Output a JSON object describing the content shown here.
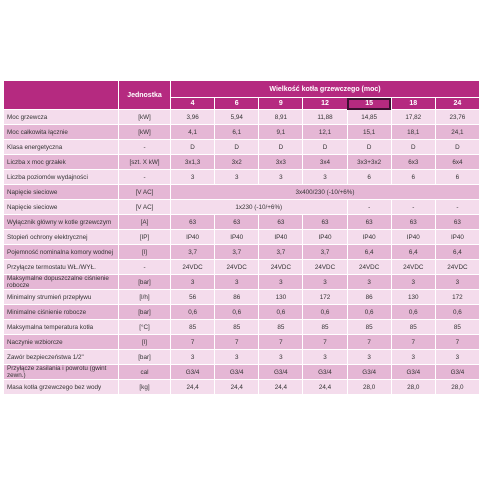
{
  "header": {
    "unit_label": "Jednostka",
    "group_title": "Wielkość kotła grzewczego (moc)",
    "columns": [
      "4",
      "6",
      "9",
      "12",
      "15",
      "18",
      "24"
    ]
  },
  "rows": [
    {
      "label": "Moc grzewcza",
      "unit": "[kW]",
      "values": [
        "3,96",
        "5,94",
        "8,91",
        "11,88",
        "14,85",
        "17,82",
        "23,76"
      ]
    },
    {
      "label": "Moc całkowita łącznie",
      "unit": "[kW]",
      "values": [
        "4,1",
        "6,1",
        "9,1",
        "12,1",
        "15,1",
        "18,1",
        "24,1"
      ]
    },
    {
      "label": "Klasa energetyczna",
      "unit": "-",
      "values": [
        "D",
        "D",
        "D",
        "D",
        "D",
        "D",
        "D"
      ]
    },
    {
      "label": "Liczba x moc grzałek",
      "unit": "[szt. X kW]",
      "values": [
        "3x1,3",
        "3x2",
        "3x3",
        "3x4",
        "3x3+3x2",
        "6x3",
        "6x4"
      ]
    },
    {
      "label": "Liczba poziomów wydajności",
      "unit": "-",
      "values": [
        "3",
        "3",
        "3",
        "3",
        "6",
        "6",
        "6"
      ]
    },
    {
      "label": "Napięcie sieciowe",
      "unit": "[V AC]",
      "values": [
        "3x400/230 (-10/+6%)"
      ]
    },
    {
      "label": "Napięcie sieciowe",
      "unit": "[V AC]",
      "values": [
        "1x230 (-10/+6%)",
        "-",
        "-",
        "-"
      ]
    },
    {
      "label": "Wyłącznik główny w kotle grzewczym",
      "unit": "[A]",
      "values": [
        "63",
        "63",
        "63",
        "63",
        "63",
        "63",
        "63"
      ]
    },
    {
      "label": "Stopień ochrony elektrycznej",
      "unit": "[IP]",
      "values": [
        "IP40",
        "IP40",
        "IP40",
        "IP40",
        "IP40",
        "IP40",
        "IP40"
      ]
    },
    {
      "label": "Pojemność nominalna komory wodnej",
      "unit": "[l]",
      "values": [
        "3,7",
        "3,7",
        "3,7",
        "3,7",
        "6,4",
        "6,4",
        "6,4"
      ]
    },
    {
      "label": "Przyłącze termostatu WŁ./WYŁ.",
      "unit": "-",
      "values": [
        "24VDC",
        "24VDC",
        "24VDC",
        "24VDC",
        "24VDC",
        "24VDC",
        "24VDC"
      ]
    },
    {
      "label": "Maksymalne dopuszczalne ciśnienie robocze",
      "unit": "[bar]",
      "values": [
        "3",
        "3",
        "3",
        "3",
        "3",
        "3",
        "3"
      ]
    },
    {
      "label": "Minimalny strumień przepływu",
      "unit": "[l/h]",
      "values": [
        "56",
        "86",
        "130",
        "172",
        "86",
        "130",
        "172"
      ]
    },
    {
      "label": "Minimalne ciśnienie robocze",
      "unit": "[bar]",
      "values": [
        "0,6",
        "0,6",
        "0,6",
        "0,6",
        "0,6",
        "0,6",
        "0,6"
      ]
    },
    {
      "label": "Maksymalna temperatura kotła",
      "unit": "[°C]",
      "values": [
        "85",
        "85",
        "85",
        "85",
        "85",
        "85",
        "85"
      ]
    },
    {
      "label": "Naczynie wzbiorcze",
      "unit": "[l]",
      "values": [
        "7",
        "7",
        "7",
        "7",
        "7",
        "7",
        "7"
      ]
    },
    {
      "label": "Zawór bezpieczeństwa 1/2\"",
      "unit": "[bar]",
      "values": [
        "3",
        "3",
        "3",
        "3",
        "3",
        "3",
        "3"
      ]
    },
    {
      "label": "Przyłącze zasilania i powrotu (gwint zewn.)",
      "unit": "cal",
      "values": [
        "G3/4",
        "G3/4",
        "G3/4",
        "G3/4",
        "G3/4",
        "G3/4",
        "G3/4"
      ]
    },
    {
      "label": "Masa kotła grzewczego bez wody",
      "unit": "[kg]",
      "values": [
        "24,4",
        "24,4",
        "24,4",
        "24,4",
        "28,0",
        "28,0",
        "28,0"
      ]
    }
  ]
}
